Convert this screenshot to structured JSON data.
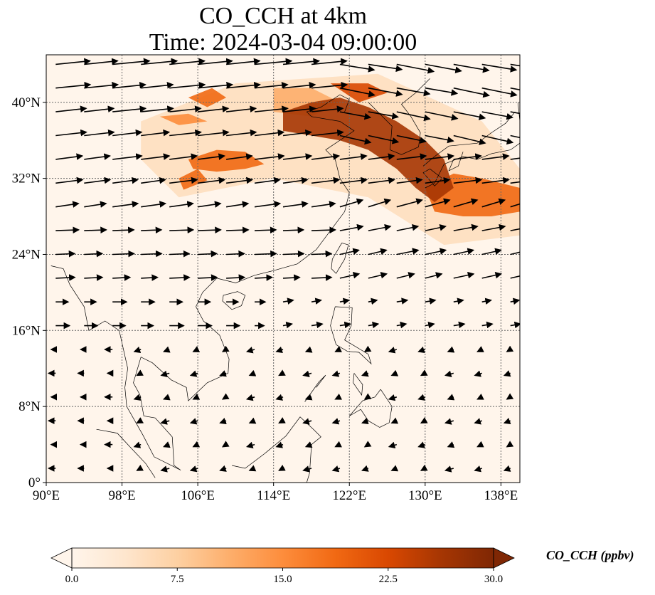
{
  "title": {
    "line1": "CO_CCH at 4km",
    "line2": "Time: 2024-03-04 09:00:00"
  },
  "map": {
    "extent": {
      "lon": [
        90,
        140
      ],
      "lat": [
        0,
        45
      ]
    },
    "lon_ticks": [
      {
        "value": 90,
        "label": "90°E"
      },
      {
        "value": 98,
        "label": "98°E"
      },
      {
        "value": 106,
        "label": "106°E"
      },
      {
        "value": 114,
        "label": "114°E"
      },
      {
        "value": 122,
        "label": "122°E"
      },
      {
        "value": 130,
        "label": "130°E"
      },
      {
        "value": 138,
        "label": "138°E"
      }
    ],
    "lat_ticks": [
      {
        "value": 0,
        "label": "0°"
      },
      {
        "value": 8,
        "label": "8°N"
      },
      {
        "value": 16,
        "label": "16°N"
      },
      {
        "value": 24,
        "label": "24°N"
      },
      {
        "value": 32,
        "label": "32°N"
      },
      {
        "value": 40,
        "label": "40°N"
      }
    ],
    "gridlines": true,
    "wind_vectors": true,
    "plume_regions": [
      {
        "level": 28,
        "points": [
          [
            115,
            39
          ],
          [
            118,
            40
          ],
          [
            121,
            40.5
          ],
          [
            124,
            39.5
          ],
          [
            127,
            38
          ],
          [
            130,
            36
          ],
          [
            132,
            34
          ],
          [
            133,
            31
          ],
          [
            131,
            29.5
          ],
          [
            129,
            31
          ],
          [
            127,
            33
          ],
          [
            124,
            35
          ],
          [
            121,
            36
          ],
          [
            118,
            36.5
          ],
          [
            115,
            37
          ]
        ]
      },
      {
        "level": 22,
        "points": [
          [
            120,
            42
          ],
          [
            124,
            42
          ],
          [
            126,
            41
          ],
          [
            123,
            40
          ]
        ]
      },
      {
        "level": 20,
        "points": [
          [
            130,
            31
          ],
          [
            133,
            32.5
          ],
          [
            136,
            32
          ],
          [
            140,
            31
          ],
          [
            140,
            28.5
          ],
          [
            137,
            28
          ],
          [
            134,
            28
          ],
          [
            131,
            28.5
          ]
        ]
      },
      {
        "level": 18,
        "points": [
          [
            105,
            34
          ],
          [
            108,
            35
          ],
          [
            111,
            34.8
          ],
          [
            113,
            33.5
          ],
          [
            111,
            33
          ],
          [
            108,
            32.7
          ],
          [
            105.5,
            33
          ]
        ]
      },
      {
        "level": 17,
        "points": [
          [
            104,
            32
          ],
          [
            106,
            33
          ],
          [
            107,
            31.8
          ],
          [
            104.5,
            30.8
          ]
        ]
      },
      {
        "level": 17,
        "points": [
          [
            105,
            40.5
          ],
          [
            107.5,
            41.5
          ],
          [
            109,
            40.5
          ],
          [
            107,
            39.5
          ]
        ]
      },
      {
        "level": 14,
        "points": [
          [
            102,
            38.5
          ],
          [
            105,
            38.8
          ],
          [
            107,
            38
          ],
          [
            104,
            37.6
          ]
        ]
      },
      {
        "level": 12,
        "points": [
          [
            114,
            41.5
          ],
          [
            118,
            41.5
          ],
          [
            121,
            40
          ],
          [
            118,
            38.5
          ],
          [
            114,
            39
          ]
        ]
      },
      {
        "level": 8,
        "points": [
          [
            100,
            38
          ],
          [
            110,
            42
          ],
          [
            125,
            43
          ],
          [
            136,
            38
          ],
          [
            140,
            33
          ],
          [
            140,
            26
          ],
          [
            132,
            25
          ],
          [
            124,
            30
          ],
          [
            114,
            32
          ],
          [
            104,
            30
          ],
          [
            100,
            34
          ]
        ]
      }
    ]
  },
  "colorbar": {
    "title": "CO_CCH (ppbv)",
    "min": 0.0,
    "max": 30.0,
    "ticks": [
      {
        "value": 0.0,
        "label": "0.0"
      },
      {
        "value": 7.5,
        "label": "7.5"
      },
      {
        "value": 15.0,
        "label": "15.0"
      },
      {
        "value": 22.5,
        "label": "22.5"
      },
      {
        "value": 30.0,
        "label": "30.0"
      }
    ],
    "colors": [
      "#fff5eb",
      "#fee6ce",
      "#fdd0a2",
      "#fdae6b",
      "#fd8d3c",
      "#f16913",
      "#d94801",
      "#a63603",
      "#7f2704"
    ]
  }
}
